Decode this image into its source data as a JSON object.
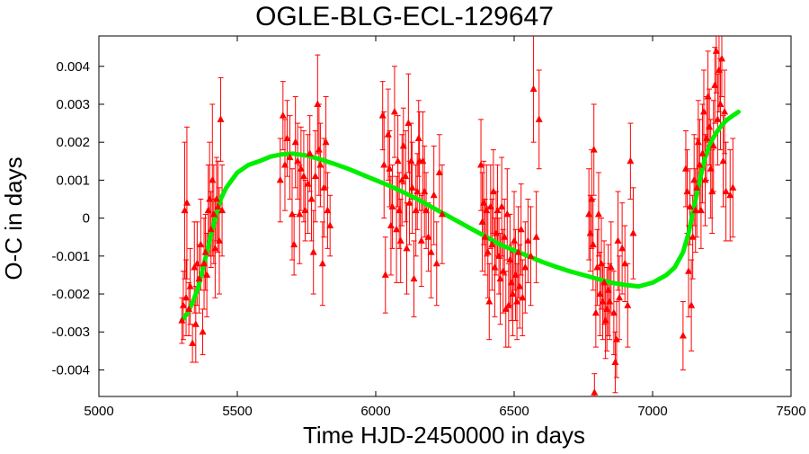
{
  "chart_data": {
    "type": "scatter",
    "title": "OGLE-BLG-ECL-129647",
    "xlabel": "Time HJD-2450000 in days",
    "ylabel": "O-C in days",
    "xlim": [
      5000,
      7500
    ],
    "ylim": [
      -0.0047,
      0.0048
    ],
    "x_ticks": [
      5000,
      5500,
      6000,
      6500,
      7000,
      7500
    ],
    "x_tick_labels": [
      "5000",
      "5500",
      "6000",
      "6500",
      "7000",
      "7500"
    ],
    "y_ticks": [
      -0.004,
      -0.003,
      -0.002,
      -0.001,
      0,
      0.001,
      0.002,
      0.003,
      0.004
    ],
    "y_tick_labels": [
      "-0.004",
      "-0.003",
      "-0.002",
      "-0.001",
      "0",
      "0.001",
      "0.002",
      "0.003",
      "0.004"
    ],
    "grid": false,
    "series": [
      {
        "kind": "points_with_errorbars",
        "color": "#ff0000",
        "marker": "triangle-up",
        "points": [
          [
            5300,
            -0.0027,
            0.0006
          ],
          [
            5305,
            -0.0023,
            0.0009
          ],
          [
            5310,
            0.0002,
            0.0018
          ],
          [
            5315,
            -0.0021,
            0.001
          ],
          [
            5318,
            0.0004,
            0.002
          ],
          [
            5325,
            -0.0024,
            0.0007
          ],
          [
            5330,
            -0.0018,
            0.001
          ],
          [
            5338,
            -0.0033,
            0.0005
          ],
          [
            5345,
            -0.0013,
            0.0012
          ],
          [
            5350,
            -0.0028,
            0.001
          ],
          [
            5355,
            -0.0012,
            0.0011
          ],
          [
            5362,
            -0.0016,
            0.0009
          ],
          [
            5368,
            -0.0007,
            0.0012
          ],
          [
            5375,
            -0.003,
            0.0006
          ],
          [
            5380,
            -0.0012,
            0.0012
          ],
          [
            5385,
            -0.0009,
            0.001
          ],
          [
            5390,
            -0.0015,
            0.0011
          ],
          [
            5395,
            0.0002,
            0.0012
          ],
          [
            5400,
            0.0005,
            0.0015
          ],
          [
            5405,
            -0.0003,
            0.001
          ],
          [
            5410,
            0.001,
            0.002
          ],
          [
            5415,
            0.0001,
            0.0013
          ],
          [
            5420,
            -0.0008,
            0.0013
          ],
          [
            5425,
            0.0005,
            0.0011
          ],
          [
            5430,
            0.0003,
            0.0012
          ],
          [
            5435,
            -0.0006,
            0.0014
          ],
          [
            5440,
            0.0026,
            0.0011
          ],
          [
            5445,
            0.0002,
            0.0012
          ],
          [
            5655,
            0.001,
            0.0011
          ],
          [
            5665,
            0.0027,
            0.0009
          ],
          [
            5672,
            0.0014,
            0.0012
          ],
          [
            5680,
            0.0021,
            0.001
          ],
          [
            5690,
            0.0016,
            0.0011
          ],
          [
            5698,
            0.0001,
            0.0012
          ],
          [
            5705,
            -0.0007,
            0.0008
          ],
          [
            5710,
            0.002,
            0.0012
          ],
          [
            5718,
            0.0015,
            0.001
          ],
          [
            5725,
            0.0001,
            0.0013
          ],
          [
            5730,
            0.0013,
            0.0011
          ],
          [
            5740,
            0.0011,
            0.0012
          ],
          [
            5745,
            0.0002,
            0.0008
          ],
          [
            5755,
            0.0009,
            0.0013
          ],
          [
            5762,
            0.0017,
            0.001
          ],
          [
            5768,
            0.0005,
            0.0011
          ],
          [
            5775,
            -0.0009,
            0.0011
          ],
          [
            5782,
            0.0011,
            0.0012
          ],
          [
            5790,
            0.003,
            0.0013
          ],
          [
            5795,
            0.0018,
            0.0012
          ],
          [
            5800,
            0.0014,
            0.0011
          ],
          [
            5808,
            -0.0012,
            0.0011
          ],
          [
            5813,
            0.0008,
            0.0013
          ],
          [
            5820,
            0.002,
            0.0012
          ],
          [
            5826,
            0.0002,
            0.001
          ],
          [
            5835,
            -0.0002,
            0.0008
          ],
          [
            6025,
            0.0027,
            0.0009
          ],
          [
            6030,
            0.0014,
            0.0014
          ],
          [
            6035,
            -0.0015,
            0.001
          ],
          [
            6045,
            0.0022,
            0.0012
          ],
          [
            6050,
            0.0013,
            0.001
          ],
          [
            6055,
            -0.0002,
            0.0013
          ],
          [
            6060,
            0.0003,
            0.0011
          ],
          [
            6068,
            0.0028,
            0.0012
          ],
          [
            6075,
            -0.0003,
            0.0014
          ],
          [
            6080,
            0.0015,
            0.0012
          ],
          [
            6085,
            0.0002,
            0.001
          ],
          [
            6090,
            -0.0006,
            0.0011
          ],
          [
            6095,
            0.001,
            0.0012
          ],
          [
            6100,
            0.0019,
            0.001
          ],
          [
            6108,
            0.0011,
            0.0012
          ],
          [
            6112,
            -0.0008,
            0.0012
          ],
          [
            6118,
            0.0025,
            0.0013
          ],
          [
            6122,
            0.0004,
            0.0011
          ],
          [
            6128,
            0.0015,
            0.001
          ],
          [
            6132,
            0.0008,
            0.0012
          ],
          [
            6138,
            -0.0016,
            0.001
          ],
          [
            6145,
            0.0002,
            0.0012
          ],
          [
            6150,
            0.0007,
            0.001
          ],
          [
            6155,
            0.0021,
            0.001
          ],
          [
            6158,
            0.0015,
            0.0013
          ],
          [
            6165,
            -0.0006,
            0.0012
          ],
          [
            6170,
            0.0015,
            0.0013
          ],
          [
            6176,
            0.0007,
            0.0012
          ],
          [
            6182,
            0.0002,
            0.001
          ],
          [
            6190,
            -0.0005,
            0.0009
          ],
          [
            6200,
            -0.0009,
            0.0012
          ],
          [
            6210,
            0.0006,
            0.0013
          ],
          [
            6220,
            -0.0012,
            0.0011
          ],
          [
            6230,
            0.0012,
            0.001
          ],
          [
            6240,
            0.0001,
            0.0013
          ],
          [
            6380,
            0.0014,
            0.0012
          ],
          [
            6385,
            -0.0001,
            0.0013
          ],
          [
            6390,
            0.0004,
            0.0011
          ],
          [
            6395,
            -0.0005,
            0.001
          ],
          [
            6400,
            0.0002,
            0.0012
          ],
          [
            6405,
            -0.0009,
            0.0012
          ],
          [
            6410,
            -0.0022,
            0.001
          ],
          [
            6415,
            0.0003,
            0.0011
          ],
          [
            6420,
            -0.0007,
            0.0012
          ],
          [
            6425,
            0.0007,
            0.0011
          ],
          [
            6430,
            -0.0013,
            0.0013
          ],
          [
            6435,
            -0.0004,
            0.0011
          ],
          [
            6440,
            0.0002,
            0.0012
          ],
          [
            6445,
            -0.001,
            0.001
          ],
          [
            6450,
            -0.0016,
            0.0012
          ],
          [
            6455,
            0.0003,
            0.0013
          ],
          [
            6460,
            -0.0014,
            0.0011
          ],
          [
            6465,
            -0.0005,
            0.001
          ],
          [
            6470,
            -0.0024,
            0.001
          ],
          [
            6475,
            0.0001,
            0.0012
          ],
          [
            6480,
            -0.0023,
            0.0011
          ],
          [
            6485,
            -0.0011,
            0.0012
          ],
          [
            6490,
            -0.0017,
            0.001
          ],
          [
            6495,
            -0.002,
            0.0011
          ],
          [
            6500,
            -0.0006,
            0.0013
          ],
          [
            6505,
            -0.0015,
            0.0012
          ],
          [
            6510,
            -0.0022,
            0.001
          ],
          [
            6515,
            -0.0009,
            0.0012
          ],
          [
            6520,
            -0.0018,
            0.0011
          ],
          [
            6525,
            -0.0003,
            0.0012
          ],
          [
            6530,
            -0.0021,
            0.001
          ],
          [
            6540,
            -0.0013,
            0.0012
          ],
          [
            6550,
            -0.0006,
            0.0011
          ],
          [
            6560,
            -0.001,
            0.0013
          ],
          [
            6570,
            0.0034,
            0.0014
          ],
          [
            6580,
            -0.0005,
            0.0012
          ],
          [
            6590,
            0.0026,
            0.0013
          ],
          [
            6770,
            0.0001,
            0.0012
          ],
          [
            6775,
            -0.0004,
            0.001
          ],
          [
            6780,
            0.0005,
            0.0013
          ],
          [
            6785,
            -0.0007,
            0.0012
          ],
          [
            6788,
            0.0018,
            0.0012
          ],
          [
            6790,
            -0.0046,
            0.0005
          ],
          [
            6795,
            -0.0025,
            0.0009
          ],
          [
            6800,
            -0.0013,
            0.001
          ],
          [
            6805,
            0.0001,
            0.0011
          ],
          [
            6810,
            -0.002,
            0.0011
          ],
          [
            6815,
            -0.0012,
            0.0012
          ],
          [
            6820,
            -0.0022,
            0.001
          ],
          [
            6825,
            -0.0017,
            0.0011
          ],
          [
            6830,
            -0.0027,
            0.001
          ],
          [
            6835,
            -0.0024,
            0.0011
          ],
          [
            6840,
            -0.0019,
            0.0012
          ],
          [
            6845,
            -0.0022,
            0.001
          ],
          [
            6850,
            -0.0013,
            0.0012
          ],
          [
            6860,
            -0.0025,
            0.0011
          ],
          [
            6865,
            -0.0038,
            0.0008
          ],
          [
            6870,
            -0.0032,
            0.001
          ],
          [
            6875,
            -0.0006,
            0.0013
          ],
          [
            6880,
            -0.0021,
            0.0011
          ],
          [
            6890,
            -0.0008,
            0.0012
          ],
          [
            6900,
            -0.0012,
            0.001
          ],
          [
            6910,
            -0.0023,
            0.0011
          ],
          [
            6920,
            0.0015,
            0.001
          ],
          [
            6930,
            -0.0004,
            0.0012
          ],
          [
            7110,
            -0.0031,
            0.0009
          ],
          [
            7120,
            0.0013,
            0.001
          ],
          [
            7125,
            0.0007,
            0.0011
          ],
          [
            7130,
            -0.0014,
            0.0012
          ],
          [
            7135,
            0.0003,
            0.001
          ],
          [
            7140,
            -0.0023,
            0.0012
          ],
          [
            7145,
            -0.0005,
            0.0011
          ],
          [
            7150,
            0.001,
            0.0012
          ],
          [
            7155,
            0.0002,
            0.0011
          ],
          [
            7160,
            0.0008,
            0.0013
          ],
          [
            7165,
            0.002,
            0.0011
          ],
          [
            7170,
            0.0014,
            0.0012
          ],
          [
            7175,
            0.0002,
            0.001
          ],
          [
            7180,
            0.0017,
            0.0013
          ],
          [
            7185,
            0.0028,
            0.0011
          ],
          [
            7190,
            0.001,
            0.0012
          ],
          [
            7195,
            0.0021,
            0.0011
          ],
          [
            7200,
            0.0032,
            0.0012
          ],
          [
            7205,
            0.0024,
            0.001
          ],
          [
            7210,
            0.0013,
            0.0013
          ],
          [
            7215,
            0.0007,
            0.0011
          ],
          [
            7220,
            0.0019,
            0.0012
          ],
          [
            7225,
            0.0035,
            0.001
          ],
          [
            7230,
            0.0044,
            0.0011
          ],
          [
            7235,
            0.0026,
            0.0012
          ],
          [
            7240,
            0.0039,
            0.0011
          ],
          [
            7245,
            0.003,
            0.0012
          ],
          [
            7250,
            0.0042,
            0.001
          ],
          [
            7255,
            0.0015,
            0.0012
          ],
          [
            7260,
            0.0028,
            0.0011
          ],
          [
            7265,
            0.0007,
            0.0013
          ],
          [
            7280,
            0.0006,
            0.0012
          ],
          [
            7290,
            0.0008,
            0.0013
          ]
        ]
      },
      {
        "kind": "fit_curve",
        "color": "#00ee00",
        "x": [
          5300,
          5320,
          5340,
          5360,
          5380,
          5400,
          5420,
          5440,
          5460,
          5480,
          5500,
          5540,
          5580,
          5620,
          5660,
          5700,
          5750,
          5800,
          5850,
          5900,
          5950,
          6000,
          6050,
          6100,
          6150,
          6200,
          6250,
          6300,
          6350,
          6400,
          6450,
          6500,
          6550,
          6600,
          6650,
          6700,
          6750,
          6800,
          6850,
          6900,
          6950,
          7000,
          7050,
          7080,
          7110,
          7130,
          7150,
          7170,
          7190,
          7210,
          7230,
          7250,
          7270,
          7290,
          7310
        ],
        "y": [
          -0.0027,
          -0.0025,
          -0.0022,
          -0.0018,
          -0.0012,
          -0.0006,
          0.0,
          0.0005,
          0.0008,
          0.001,
          0.0012,
          0.0014,
          0.0015,
          0.00162,
          0.00168,
          0.0017,
          0.00165,
          0.00155,
          0.00143,
          0.0013,
          0.00115,
          0.001,
          0.00085,
          0.00068,
          0.0005,
          0.0003,
          0.0001,
          -0.0001,
          -0.0003,
          -0.0005,
          -0.0007,
          -0.00085,
          -0.001,
          -0.00115,
          -0.00128,
          -0.0014,
          -0.0015,
          -0.0016,
          -0.0017,
          -0.00176,
          -0.0018,
          -0.0017,
          -0.0015,
          -0.0013,
          -0.0009,
          -0.0004,
          0.0003,
          0.001,
          0.0016,
          0.002,
          0.00225,
          0.00245,
          0.0026,
          0.0027,
          0.0028
        ]
      }
    ]
  }
}
